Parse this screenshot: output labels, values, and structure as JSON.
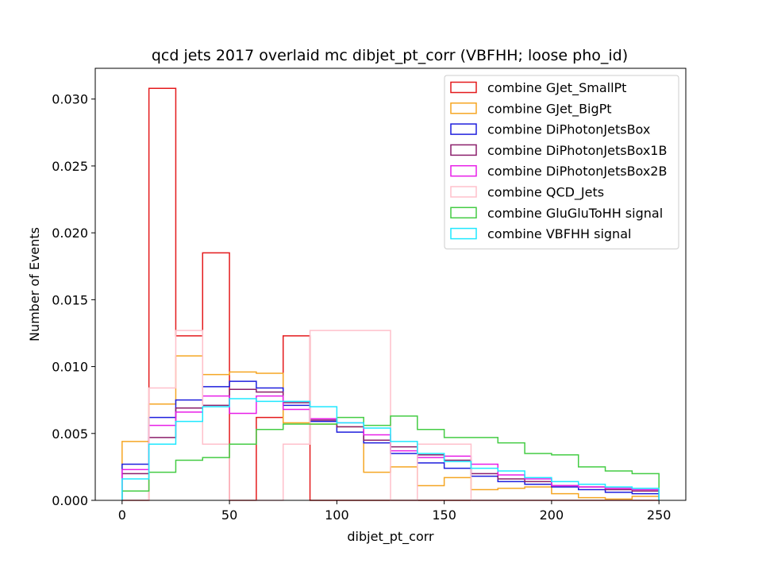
{
  "chart_data": {
    "type": "histogram-step",
    "title": "qcd jets 2017 overlaid mc dibjet_pt_corr (VBFHH; loose pho_id)",
    "xlabel": "dibjet_pt_corr",
    "ylabel": "Number of Events",
    "xlim": [
      -12.5,
      262.5
    ],
    "ylim": [
      0,
      0.0323
    ],
    "xticks": [
      0,
      50,
      100,
      150,
      200,
      250
    ],
    "yticks": [
      0.0,
      0.005,
      0.01,
      0.015,
      0.02,
      0.025,
      0.03
    ],
    "ytick_labels": [
      "0.000",
      "0.005",
      "0.010",
      "0.015",
      "0.020",
      "0.025",
      "0.030"
    ],
    "bin_edges": [
      0,
      12.5,
      25,
      37.5,
      50,
      62.5,
      75,
      87.5,
      100,
      112.5,
      125,
      137.5,
      150,
      162.5,
      175,
      187.5,
      200,
      212.5,
      225,
      237.5,
      250
    ],
    "legend_position": "upper right",
    "series": [
      {
        "name": "combine GJet_SmallPt",
        "color": "#e41a1c",
        "values": [
          0.0,
          0.0308,
          0.0123,
          0.0185,
          0.0,
          0.0062,
          0.0123,
          0.0,
          0.0,
          0.0,
          0.0,
          0.0,
          0.0,
          0.0,
          0.0,
          0.0,
          0.0,
          0.0,
          0.0,
          0.0
        ]
      },
      {
        "name": "combine GJet_BigPt",
        "color": "#f5a623",
        "values": [
          0.0044,
          0.0072,
          0.0108,
          0.0094,
          0.0096,
          0.0095,
          0.0058,
          0.0057,
          0.0055,
          0.0021,
          0.0025,
          0.0011,
          0.0017,
          0.0008,
          0.0009,
          0.001,
          0.0005,
          0.0002,
          0.0001,
          0.0003
        ]
      },
      {
        "name": "combine DiPhotonJetsBox",
        "color": "#1f1fdd",
        "values": [
          0.0027,
          0.0062,
          0.0075,
          0.0085,
          0.0089,
          0.0084,
          0.0071,
          0.0059,
          0.0051,
          0.0043,
          0.0035,
          0.0028,
          0.0024,
          0.0018,
          0.0014,
          0.0012,
          0.001,
          0.0008,
          0.0006,
          0.0005
        ]
      },
      {
        "name": "combine DiPhotonJetsBox1B",
        "color": "#8b1f6b",
        "values": [
          0.002,
          0.0047,
          0.0069,
          0.0071,
          0.0083,
          0.0081,
          0.0073,
          0.006,
          0.0055,
          0.0045,
          0.004,
          0.0034,
          0.003,
          0.002,
          0.0016,
          0.0014,
          0.0011,
          0.001,
          0.0008,
          0.0007
        ]
      },
      {
        "name": "combine DiPhotonJetsBox2B",
        "color": "#e81fe8",
        "values": [
          0.0023,
          0.0056,
          0.0066,
          0.0078,
          0.0065,
          0.0078,
          0.0068,
          0.0061,
          0.0058,
          0.0049,
          0.0037,
          0.0032,
          0.0033,
          0.0027,
          0.0019,
          0.0016,
          0.0011,
          0.001,
          0.0009,
          0.0008
        ]
      },
      {
        "name": "combine QCD_Jets",
        "color": "#ffc0cb",
        "values": [
          0.0,
          0.0084,
          0.0127,
          0.0042,
          0.0,
          0.0,
          0.0042,
          0.0127,
          0.0127,
          0.0127,
          0.0,
          0.0042,
          0.0042,
          0.0,
          0.0,
          0.0,
          0.0,
          0.0,
          0.0,
          0.0
        ]
      },
      {
        "name": "combine GluGluToHH signal",
        "color": "#44cc44",
        "values": [
          0.0007,
          0.0021,
          0.003,
          0.0032,
          0.0042,
          0.0053,
          0.0057,
          0.0057,
          0.0062,
          0.0056,
          0.0063,
          0.0053,
          0.0047,
          0.0047,
          0.0043,
          0.0035,
          0.0034,
          0.0025,
          0.0022,
          0.002
        ]
      },
      {
        "name": "combine VBFHH signal",
        "color": "#1fe8ff",
        "values": [
          0.0016,
          0.0042,
          0.0059,
          0.007,
          0.0076,
          0.0074,
          0.0074,
          0.007,
          0.0058,
          0.0054,
          0.0044,
          0.0035,
          0.0029,
          0.0024,
          0.0022,
          0.0017,
          0.0014,
          0.0012,
          0.001,
          0.0009
        ]
      }
    ]
  }
}
